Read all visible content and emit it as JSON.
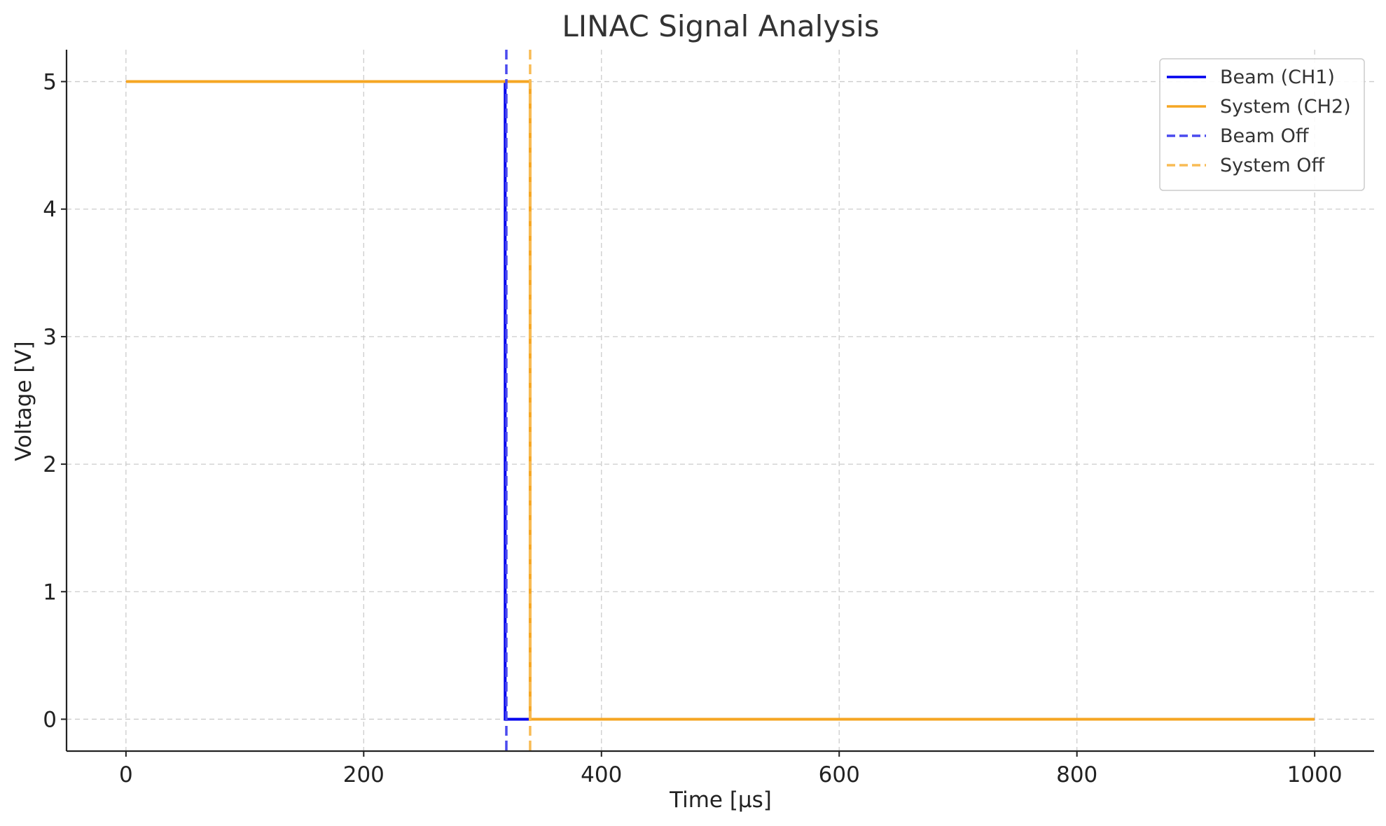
{
  "chart_data": {
    "type": "line",
    "title": "LINAC Signal Analysis",
    "xlabel": "Time [µs]",
    "ylabel": "Voltage [V]",
    "xlim": [
      -50,
      1050
    ],
    "ylim": [
      -0.25,
      5.25
    ],
    "xticks": [
      0,
      200,
      400,
      600,
      800,
      1000
    ],
    "yticks": [
      0,
      1,
      2,
      3,
      4,
      5
    ],
    "xtick_labels": [
      "0",
      "200",
      "400",
      "600",
      "800",
      "1000"
    ],
    "ytick_labels": [
      "0",
      "1",
      "2",
      "3",
      "4",
      "5"
    ],
    "grid": true,
    "legend_position": "top-right",
    "series": [
      {
        "name": "Beam (CH1)",
        "color": "#0000ee",
        "style": "solid",
        "x": [
          0,
          319,
          319,
          1000
        ],
        "y": [
          5,
          5,
          0,
          0
        ]
      },
      {
        "name": "System (CH2)",
        "color": "#f5a623",
        "style": "solid",
        "x": [
          0,
          340,
          340,
          1000
        ],
        "y": [
          5,
          5,
          0,
          0
        ]
      }
    ],
    "vlines": [
      {
        "name": "Beam Off",
        "x": 320,
        "color": "#4a4aee",
        "style": "dashed"
      },
      {
        "name": "System Off",
        "x": 340,
        "color": "#f8bb55",
        "style": "dashed"
      }
    ]
  }
}
